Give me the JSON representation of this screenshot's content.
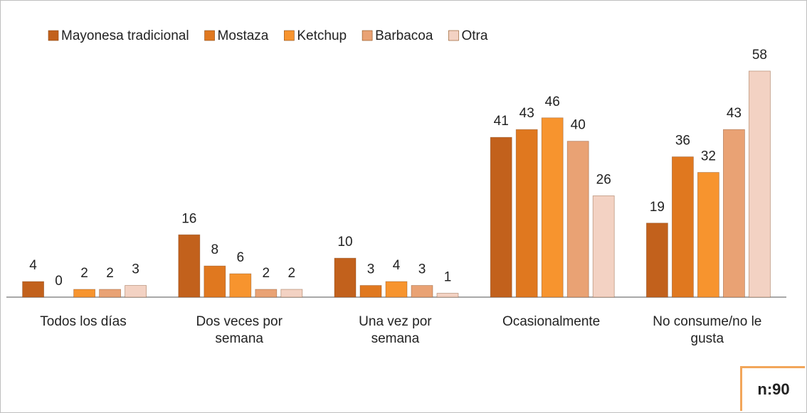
{
  "chart_data": {
    "type": "bar",
    "categories": [
      "Todos los días",
      "Dos veces por\nsemana",
      "Una vez por\nsemana",
      "Ocasionalmente",
      "No consume/no le\ngusta"
    ],
    "series": [
      {
        "name": "Mayonesa tradicional",
        "color": "#c2611c",
        "values": [
          4,
          16,
          10,
          41,
          19
        ]
      },
      {
        "name": "Mostaza",
        "color": "#e0781f",
        "values": [
          0,
          8,
          3,
          43,
          36
        ]
      },
      {
        "name": "Ketchup",
        "color": "#f7942e",
        "values": [
          2,
          6,
          4,
          46,
          32
        ]
      },
      {
        "name": "Barbacoa",
        "color": "#e9a274",
        "values": [
          2,
          2,
          3,
          40,
          43
        ]
      },
      {
        "name": "Otra",
        "color": "#f3d2c3",
        "values": [
          3,
          2,
          1,
          26,
          58
        ]
      }
    ],
    "ylim": [
      0,
      60
    ],
    "legend": "top",
    "annotation": "n:90"
  }
}
